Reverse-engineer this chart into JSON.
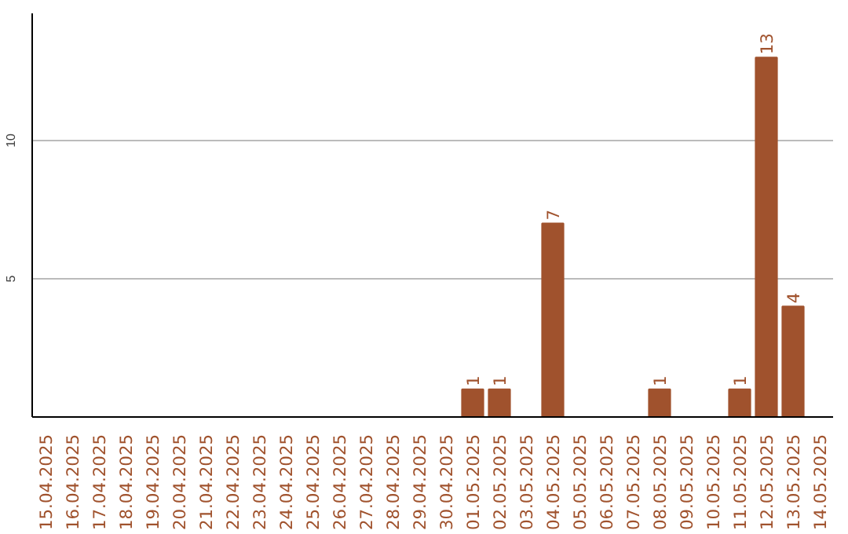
{
  "chart_data": {
    "type": "bar",
    "categories": [
      "15.04.2025",
      "16.04.2025",
      "17.04.2025",
      "18.04.2025",
      "19.04.2025",
      "20.04.2025",
      "21.04.2025",
      "22.04.2025",
      "23.04.2025",
      "24.04.2025",
      "25.04.2025",
      "26.04.2025",
      "27.04.2025",
      "28.04.2025",
      "29.04.2025",
      "30.04.2025",
      "01.05.2025",
      "02.05.2025",
      "03.05.2025",
      "04.05.2025",
      "05.05.2025",
      "06.05.2025",
      "07.05.2025",
      "08.05.2025",
      "09.05.2025",
      "10.05.2025",
      "11.05.2025",
      "12.05.2025",
      "13.05.2025",
      "14.05.2025"
    ],
    "values": [
      0,
      0,
      0,
      0,
      0,
      0,
      0,
      0,
      0,
      0,
      0,
      0,
      0,
      0,
      0,
      0,
      1,
      1,
      0,
      7,
      0,
      0,
      0,
      1,
      0,
      0,
      1,
      13,
      4,
      0
    ],
    "value_labels": [
      null,
      null,
      null,
      null,
      null,
      null,
      null,
      null,
      null,
      null,
      null,
      null,
      null,
      null,
      null,
      null,
      "1",
      "1",
      null,
      "7",
      null,
      null,
      null,
      "1",
      null,
      null,
      "1",
      "13",
      "4",
      null
    ],
    "color": "#a0522d",
    "ylim": [
      0,
      14.6
    ],
    "yticks": [
      5,
      10
    ],
    "grid": "y"
  }
}
